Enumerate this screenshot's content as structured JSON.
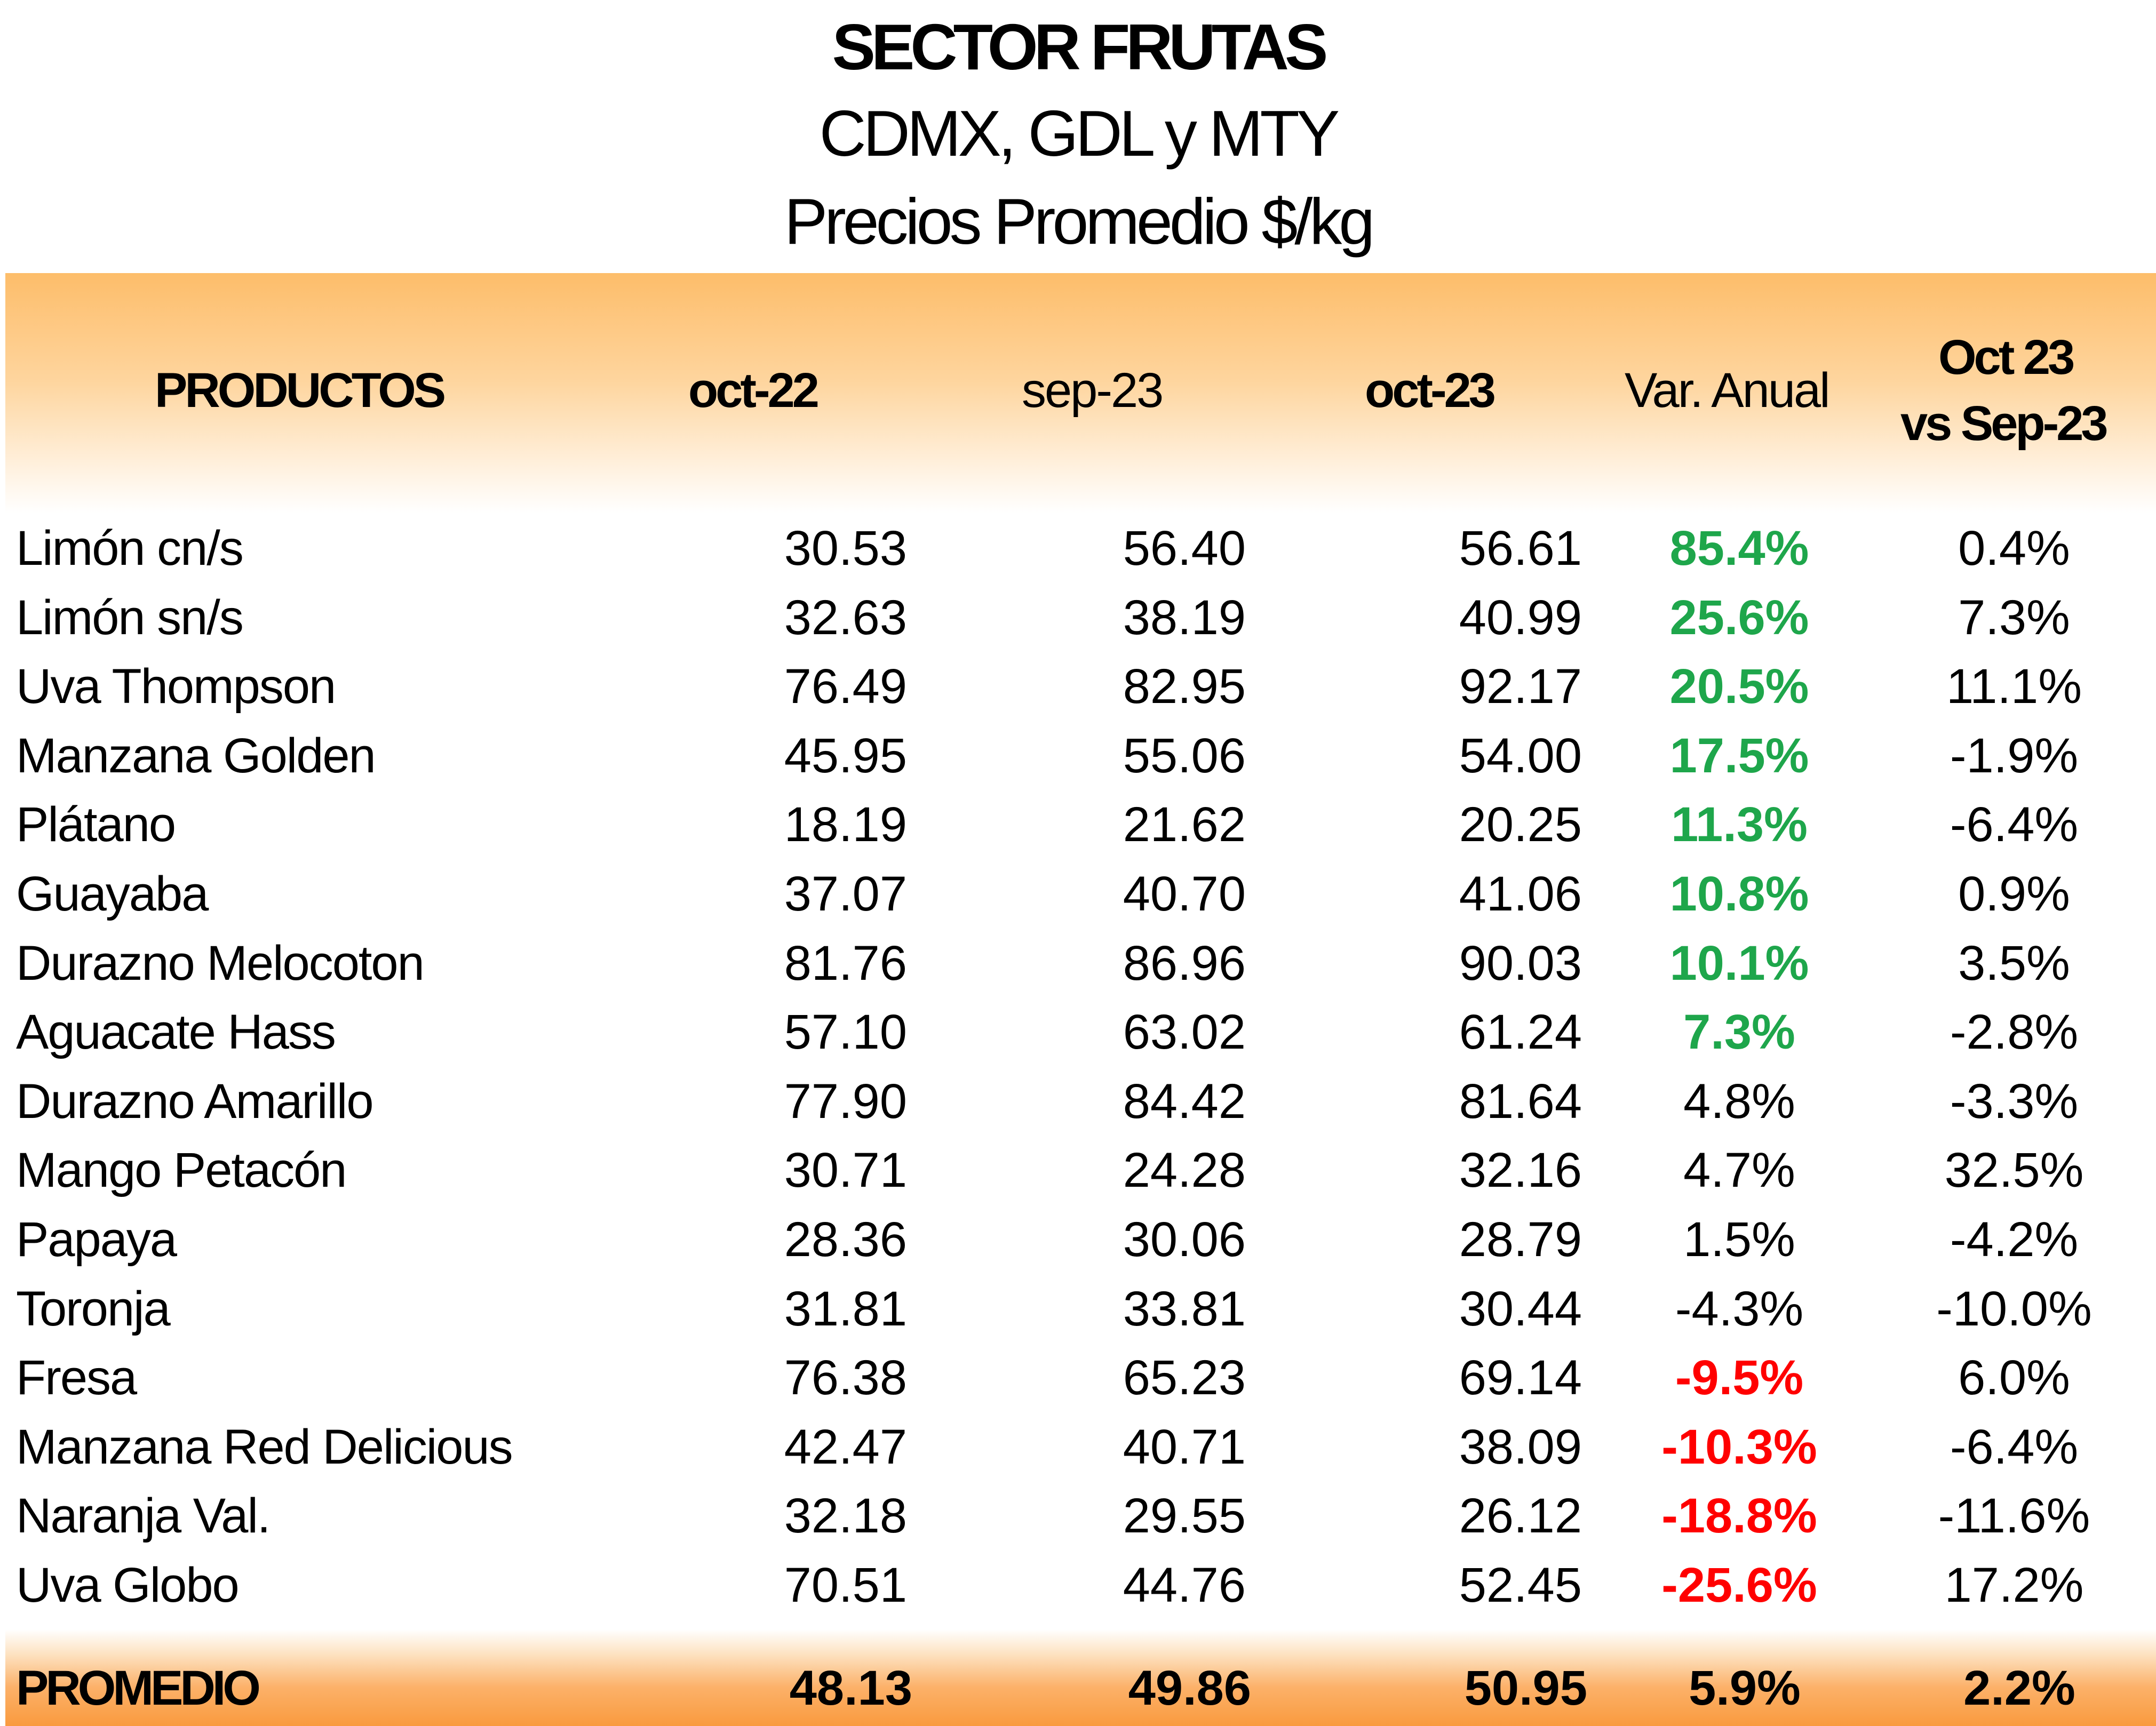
{
  "title": {
    "line1": "SECTOR FRUTAS",
    "line2": "CDMX, GDL y MTY",
    "line3": "Precios Promedio $/kg"
  },
  "table": {
    "headers": {
      "product": "PRODUCTOS",
      "oct22": "oct-22",
      "sep23": "sep-23",
      "oct23": "oct-23",
      "var_anual": "Var. Anual",
      "mom_line1": "Oct 23",
      "mom_line2": "vs Sep-23"
    },
    "rows": [
      {
        "product": "Limón cn/s",
        "oct22": "30.53",
        "sep23": "56.40",
        "oct23": "56.61",
        "var": "85.4%",
        "var_status": "pos",
        "mom": "0.4%"
      },
      {
        "product": "Limón sn/s",
        "oct22": "32.63",
        "sep23": "38.19",
        "oct23": "40.99",
        "var": "25.6%",
        "var_status": "pos",
        "mom": "7.3%"
      },
      {
        "product": "Uva Thompson",
        "oct22": "76.49",
        "sep23": "82.95",
        "oct23": "92.17",
        "var": "20.5%",
        "var_status": "pos",
        "mom": "11.1%"
      },
      {
        "product": "Manzana Golden",
        "oct22": "45.95",
        "sep23": "55.06",
        "oct23": "54.00",
        "var": "17.5%",
        "var_status": "pos",
        "mom": "-1.9%"
      },
      {
        "product": "Plátano",
        "oct22": "18.19",
        "sep23": "21.62",
        "oct23": "20.25",
        "var": "11.3%",
        "var_status": "pos",
        "mom": "-6.4%"
      },
      {
        "product": "Guayaba",
        "oct22": "37.07",
        "sep23": "40.70",
        "oct23": "41.06",
        "var": "10.8%",
        "var_status": "pos",
        "mom": "0.9%"
      },
      {
        "product": "Durazno Melocoton",
        "oct22": "81.76",
        "sep23": "86.96",
        "oct23": "90.03",
        "var": "10.1%",
        "var_status": "pos",
        "mom": "3.5%"
      },
      {
        "product": "Aguacate Hass",
        "oct22": "57.10",
        "sep23": "63.02",
        "oct23": "61.24",
        "var": "7.3%",
        "var_status": "pos",
        "mom": "-2.8%"
      },
      {
        "product": "Durazno Amarillo",
        "oct22": "77.90",
        "sep23": "84.42",
        "oct23": "81.64",
        "var": "4.8%",
        "var_status": "neutral",
        "mom": "-3.3%"
      },
      {
        "product": "Mango Petacón",
        "oct22": "30.71",
        "sep23": "24.28",
        "oct23": "32.16",
        "var": "4.7%",
        "var_status": "neutral",
        "mom": "32.5%"
      },
      {
        "product": "Papaya",
        "oct22": "28.36",
        "sep23": "30.06",
        "oct23": "28.79",
        "var": "1.5%",
        "var_status": "neutral",
        "mom": "-4.2%"
      },
      {
        "product": "Toronja",
        "oct22": "31.81",
        "sep23": "33.81",
        "oct23": "30.44",
        "var": "-4.3%",
        "var_status": "neutral",
        "mom": "-10.0%"
      },
      {
        "product": "Fresa",
        "oct22": "76.38",
        "sep23": "65.23",
        "oct23": "69.14",
        "var": "-9.5%",
        "var_status": "neg",
        "mom": "6.0%"
      },
      {
        "product": "Manzana Red Delicious",
        "oct22": "42.47",
        "sep23": "40.71",
        "oct23": "38.09",
        "var": "-10.3%",
        "var_status": "neg",
        "mom": "-6.4%"
      },
      {
        "product": "Naranja Val.",
        "oct22": "32.18",
        "sep23": "29.55",
        "oct23": "26.12",
        "var": "-18.8%",
        "var_status": "neg",
        "mom": "-11.6%"
      },
      {
        "product": "Uva Globo",
        "oct22": "70.51",
        "sep23": "44.76",
        "oct23": "52.45",
        "var": "-25.6%",
        "var_status": "neg",
        "mom": "17.2%"
      }
    ],
    "footer": {
      "product": "PROMEDIO",
      "oct22": "48.13",
      "sep23": "49.86",
      "oct23": "50.95",
      "var": "5.9%",
      "mom": "2.2%"
    }
  },
  "colors": {
    "positive": "#1ea64b",
    "negative": "#ff0000",
    "header_orange": "#fdbd6a",
    "footer_orange": "#f99a3e"
  }
}
